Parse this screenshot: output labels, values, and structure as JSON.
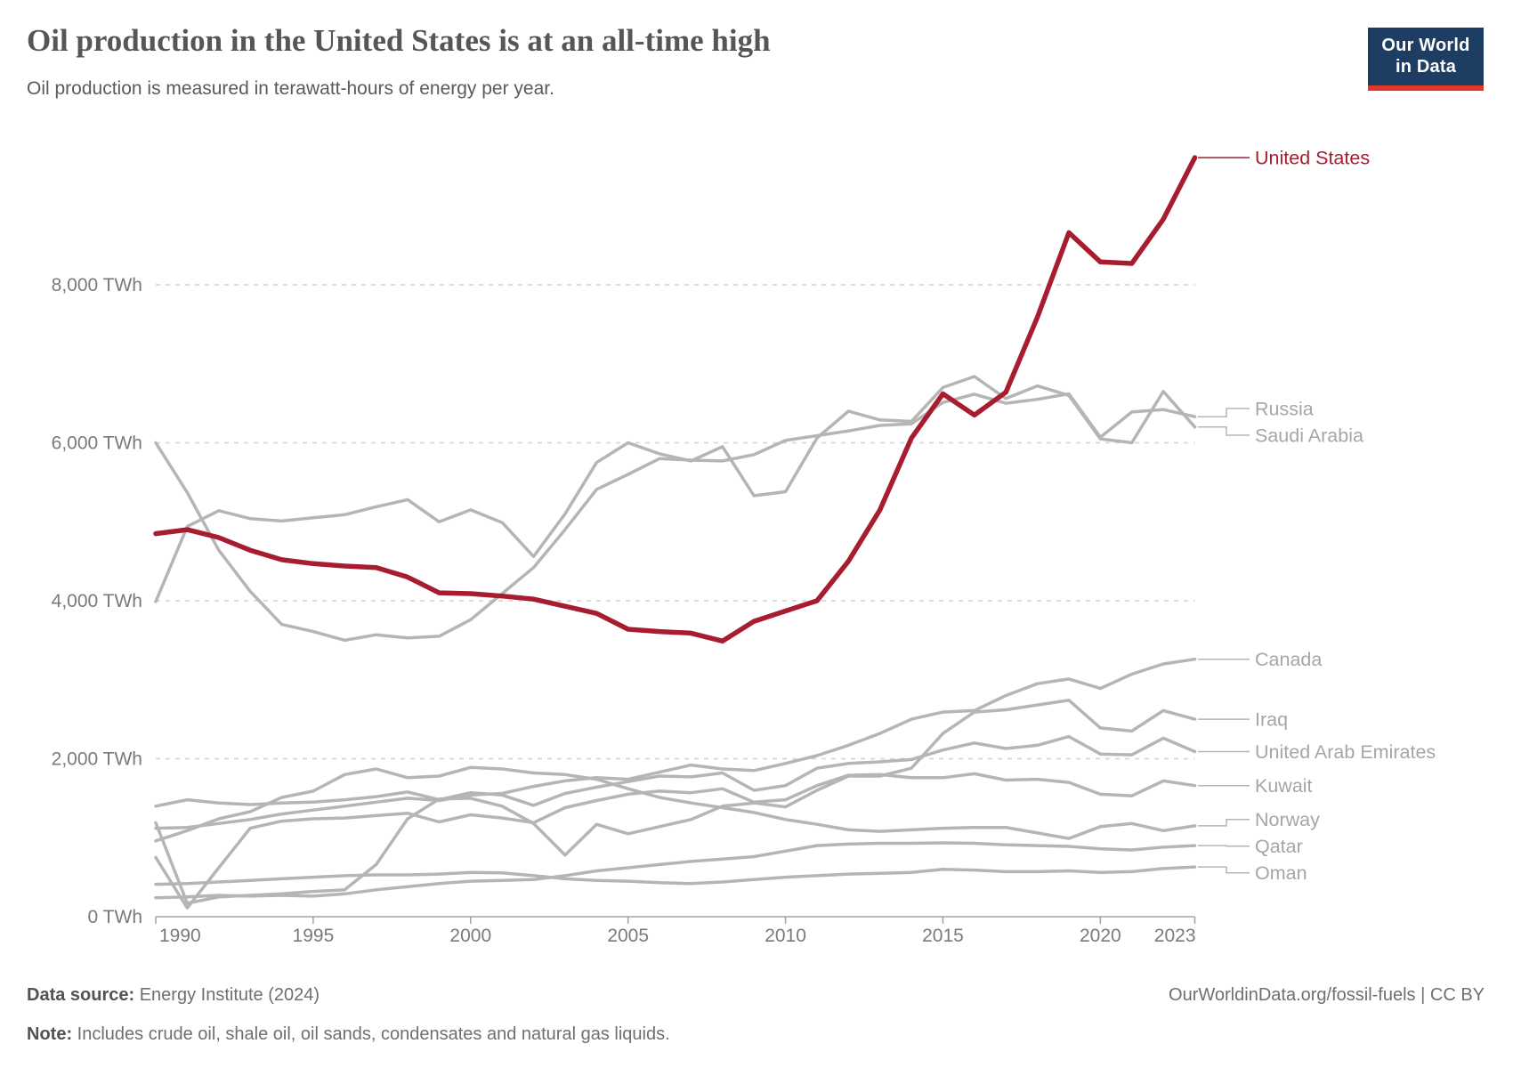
{
  "header": {
    "title": "Oil production in the United States is at an all-time high",
    "subtitle": "Oil production is measured in terawatt-hours of energy per year."
  },
  "logo": {
    "line1": "Our World",
    "line2": "in Data"
  },
  "colors": {
    "highlight_red": "#a81c30",
    "muted_gray_line": "#b5b5b5",
    "muted_gray_label": "#a6a6a6",
    "gridline": "#d7d7d7",
    "axis": "#a3a3a3",
    "tick_text": "#7a7a7a",
    "logo_navy": "#1d3d63",
    "logo_red": "#e0372b"
  },
  "chart_data": {
    "type": "line",
    "title": "Oil production in the United States is at an all-time high",
    "subtitle": "Oil production is measured in terawatt-hours of energy per year.",
    "unit": "TWh",
    "x": {
      "start": 1990,
      "end": 2023,
      "step": 1
    },
    "x_ticks": [
      1990,
      1995,
      2000,
      2005,
      2010,
      2015,
      2020,
      2023
    ],
    "y_ticks": [
      0,
      2000,
      4000,
      6000,
      8000
    ],
    "ylim": [
      0,
      9900
    ],
    "grid": "horizontal-dashed",
    "legend_position": "right-edge-labels",
    "series": [
      {
        "name": "United States",
        "color": "#a81c30",
        "highlight": true,
        "values": [
          4850,
          4900,
          4800,
          4640,
          4520,
          4470,
          4440,
          4420,
          4300,
          4100,
          4090,
          4060,
          4020,
          3930,
          3840,
          3640,
          3610,
          3590,
          3490,
          3740,
          3870,
          4000,
          4500,
          5150,
          6060,
          6620,
          6350,
          6640,
          7590,
          8660,
          8290,
          8270,
          8830,
          9610
        ]
      },
      {
        "name": "Russia",
        "color": "#b5b5b5",
        "highlight": false,
        "values": [
          6000,
          5370,
          4640,
          4120,
          3700,
          3610,
          3500,
          3570,
          3530,
          3550,
          3760,
          4090,
          4420,
          4900,
          5410,
          5600,
          5800,
          5780,
          5770,
          5850,
          6030,
          6090,
          6150,
          6220,
          6240,
          6510,
          6615,
          6500,
          6550,
          6620,
          6070,
          6390,
          6420,
          6330
        ]
      },
      {
        "name": "Saudi Arabia",
        "color": "#b5b5b5",
        "highlight": false,
        "values": [
          3990,
          4940,
          5140,
          5040,
          5010,
          5050,
          5090,
          5190,
          5280,
          5000,
          5150,
          4990,
          4560,
          5100,
          5750,
          6000,
          5860,
          5770,
          5950,
          5330,
          5380,
          6060,
          6400,
          6290,
          6270,
          6700,
          6840,
          6560,
          6720,
          6600,
          6050,
          6000,
          6650,
          6200
        ]
      },
      {
        "name": "Canada",
        "color": "#b5b5b5",
        "highlight": false,
        "values": [
          1120,
          1130,
          1180,
          1230,
          1300,
          1350,
          1400,
          1450,
          1500,
          1470,
          1540,
          1560,
          1650,
          1720,
          1760,
          1740,
          1830,
          1920,
          1870,
          1850,
          1940,
          2040,
          2170,
          2320,
          2500,
          2590,
          2610,
          2800,
          2950,
          3010,
          2890,
          3070,
          3200,
          3260
        ]
      },
      {
        "name": "Iraq",
        "color": "#b5b5b5",
        "highlight": false,
        "values": [
          1190,
          170,
          250,
          270,
          290,
          320,
          340,
          660,
          1240,
          1490,
          1500,
          1400,
          1180,
          780,
          1170,
          1050,
          1140,
          1230,
          1400,
          1440,
          1390,
          1600,
          1780,
          1780,
          1880,
          2320,
          2590,
          2620,
          2680,
          2740,
          2390,
          2350,
          2610,
          2500
        ]
      },
      {
        "name": "United Arab Emirates",
        "color": "#b5b5b5",
        "highlight": false,
        "values": [
          1400,
          1480,
          1440,
          1420,
          1440,
          1450,
          1480,
          1520,
          1580,
          1480,
          1570,
          1540,
          1410,
          1560,
          1640,
          1710,
          1780,
          1770,
          1820,
          1600,
          1660,
          1880,
          1940,
          1960,
          1990,
          2110,
          2200,
          2130,
          2170,
          2280,
          2060,
          2050,
          2260,
          2090
        ]
      },
      {
        "name": "Kuwait",
        "color": "#b5b5b5",
        "highlight": false,
        "values": [
          750,
          110,
          620,
          1120,
          1210,
          1240,
          1250,
          1280,
          1310,
          1200,
          1290,
          1250,
          1190,
          1380,
          1470,
          1550,
          1590,
          1570,
          1620,
          1450,
          1480,
          1660,
          1790,
          1800,
          1760,
          1760,
          1810,
          1730,
          1740,
          1700,
          1550,
          1530,
          1720,
          1660
        ]
      },
      {
        "name": "Norway",
        "color": "#b5b5b5",
        "highlight": false,
        "values": [
          960,
          1090,
          1240,
          1330,
          1510,
          1590,
          1800,
          1870,
          1760,
          1780,
          1890,
          1870,
          1820,
          1800,
          1740,
          1620,
          1510,
          1440,
          1380,
          1320,
          1230,
          1170,
          1100,
          1080,
          1100,
          1120,
          1130,
          1130,
          1060,
          990,
          1140,
          1180,
          1090,
          1150
        ]
      },
      {
        "name": "Qatar",
        "color": "#b5b5b5",
        "highlight": false,
        "values": [
          240,
          250,
          270,
          260,
          270,
          260,
          290,
          340,
          380,
          420,
          450,
          460,
          470,
          520,
          580,
          620,
          660,
          700,
          730,
          760,
          830,
          900,
          920,
          930,
          930,
          935,
          930,
          910,
          900,
          890,
          860,
          845,
          880,
          900
        ]
      },
      {
        "name": "Oman",
        "color": "#b5b5b5",
        "highlight": false,
        "values": [
          410,
          420,
          440,
          460,
          480,
          500,
          520,
          530,
          530,
          540,
          560,
          555,
          520,
          480,
          460,
          450,
          430,
          420,
          440,
          470,
          500,
          520,
          540,
          550,
          560,
          600,
          590,
          570,
          570,
          580,
          560,
          570,
          610,
          630
        ]
      }
    ]
  },
  "footer": {
    "source_label": "Data source:",
    "source_value": "Energy Institute (2024)",
    "note_label": "Note:",
    "note_value": "Includes crude oil, shale oil, oil sands, condensates and natural gas liquids.",
    "link": "OurWorldinData.org/fossil-fuels",
    "divider": " | ",
    "license": "CC BY"
  }
}
